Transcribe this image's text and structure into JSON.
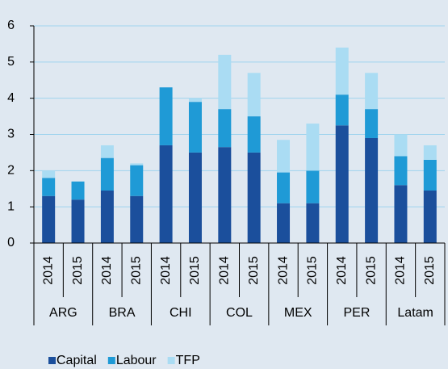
{
  "chart_data": {
    "type": "stacked_bar",
    "categories": [
      "2014",
      "2015",
      "2014",
      "2015",
      "2014",
      "2015",
      "2014",
      "2015",
      "2014",
      "2015",
      "2014",
      "2015",
      "2014",
      "2015"
    ],
    "groups": [
      "ARG",
      "BRA",
      "CHI",
      "COL",
      "MEX",
      "PER",
      "Latam"
    ],
    "series": [
      {
        "name": "Capital",
        "color": "#1b4f9c",
        "values": [
          1.3,
          1.2,
          1.45,
          1.3,
          2.7,
          2.5,
          2.65,
          2.5,
          1.1,
          1.1,
          3.25,
          2.9,
          1.6,
          1.45
        ]
      },
      {
        "name": "Labour",
        "color": "#1f9ad6",
        "values": [
          0.5,
          0.5,
          0.9,
          0.85,
          1.6,
          1.4,
          1.05,
          1.0,
          0.85,
          0.9,
          0.85,
          0.8,
          0.8,
          0.85
        ]
      },
      {
        "name": "TFP",
        "color": "#aadcf3",
        "values": [
          0.2,
          0,
          0.35,
          0.05,
          0,
          0.1,
          1.5,
          1.2,
          0.9,
          1.3,
          1.3,
          1.0,
          0.6,
          0.4
        ]
      }
    ],
    "ylim": [
      0,
      6
    ],
    "yticks": [
      0,
      1,
      2,
      3,
      4,
      5,
      6
    ],
    "grid": true,
    "legend": "bottom-left"
  }
}
